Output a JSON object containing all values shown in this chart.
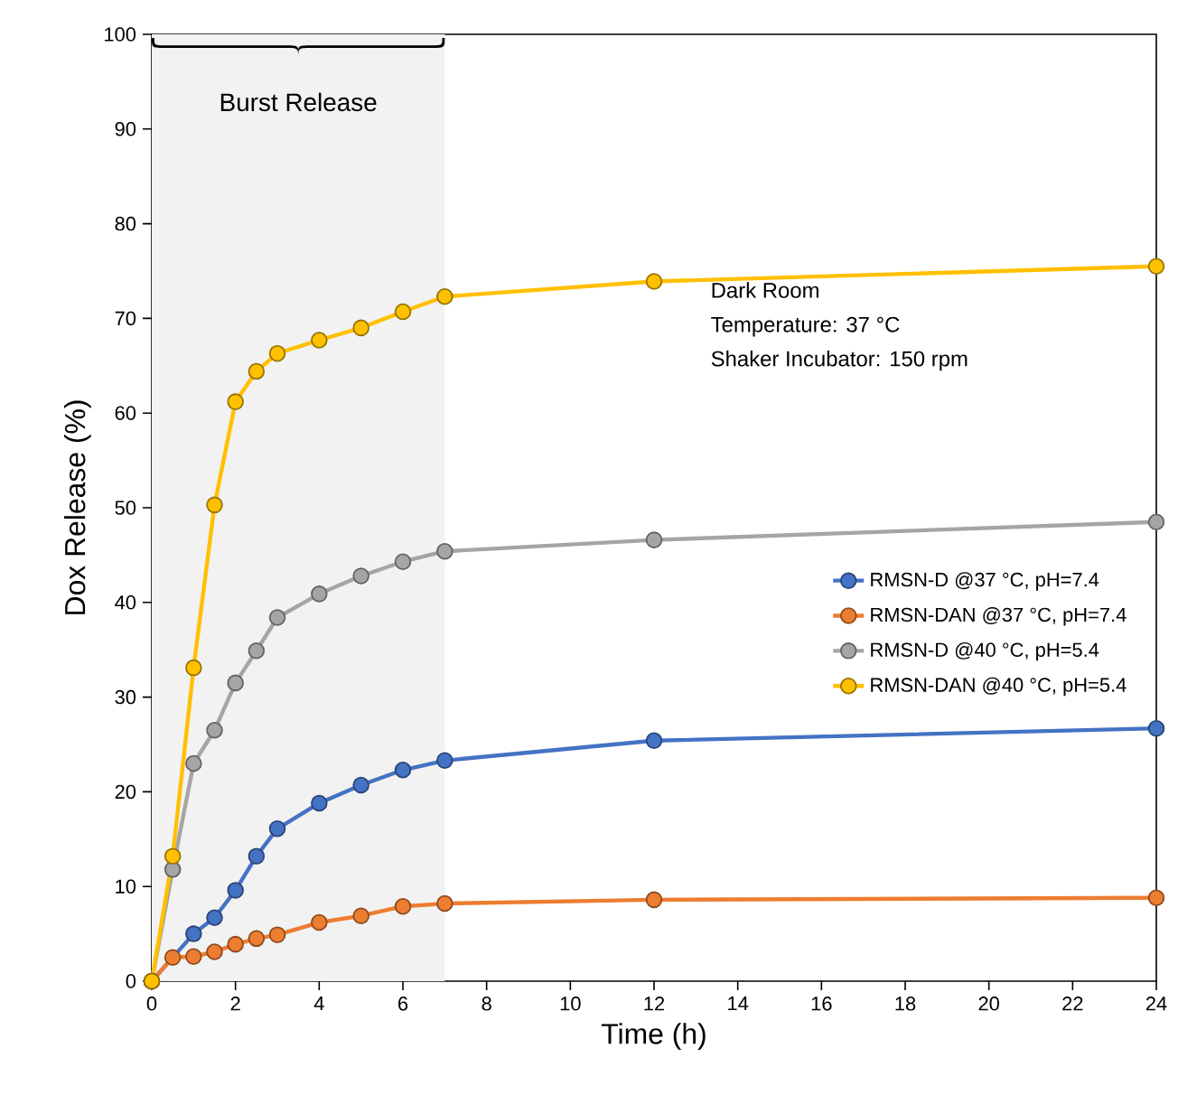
{
  "chart_data": {
    "type": "line",
    "xlabel": "Time (h)",
    "ylabel": "Dox Release (%)",
    "x": [
      0,
      0.5,
      1,
      1.5,
      2,
      2.5,
      3,
      4,
      5,
      6,
      7,
      12,
      24
    ],
    "series": [
      {
        "name": "RMSN-D @37 °C, pH=7.4",
        "color": "#4472c4",
        "values": [
          0,
          null,
          5.0,
          6.7,
          9.6,
          13.2,
          16.1,
          18.8,
          20.7,
          22.3,
          23.3,
          25.4,
          26.7
        ]
      },
      {
        "name": "RMSN-DAN @37 °C, pH=7.4",
        "color": "#ed7d31",
        "values": [
          0,
          2.5,
          2.6,
          3.1,
          3.9,
          4.5,
          4.9,
          6.2,
          6.9,
          7.9,
          8.2,
          8.6,
          8.8
        ]
      },
      {
        "name": "RMSN-D @40 °C, pH=5.4",
        "color": "#a5a5a5",
        "values": [
          0,
          11.8,
          23.0,
          26.5,
          31.5,
          34.9,
          38.4,
          40.9,
          42.8,
          44.3,
          45.4,
          46.6,
          48.5
        ]
      },
      {
        "name": "RMSN-DAN @40 °C, pH=5.4",
        "color": "#ffc000",
        "values": [
          0,
          13.2,
          33.1,
          50.3,
          61.2,
          64.4,
          66.3,
          67.7,
          69.0,
          70.7,
          72.3,
          73.9,
          75.5
        ]
      }
    ],
    "xlim": [
      0,
      24
    ],
    "xticks": [
      0,
      2,
      4,
      6,
      8,
      10,
      12,
      14,
      16,
      18,
      20,
      22,
      24
    ],
    "ylim": [
      0,
      100
    ],
    "yticks": [
      0,
      10,
      20,
      30,
      40,
      50,
      60,
      70,
      80,
      90,
      100
    ],
    "bands": [
      {
        "axis": "x",
        "from": 0,
        "to": 7,
        "label": "Burst Release",
        "color": "#f2f2f2"
      }
    ],
    "annotations": [
      "Dark Room",
      "Temperature: 37 °C",
      "Shaker Incubator: 150 rpm"
    ],
    "grid": false,
    "legend": "right",
    "marker": "circle",
    "line_style": "solid"
  }
}
